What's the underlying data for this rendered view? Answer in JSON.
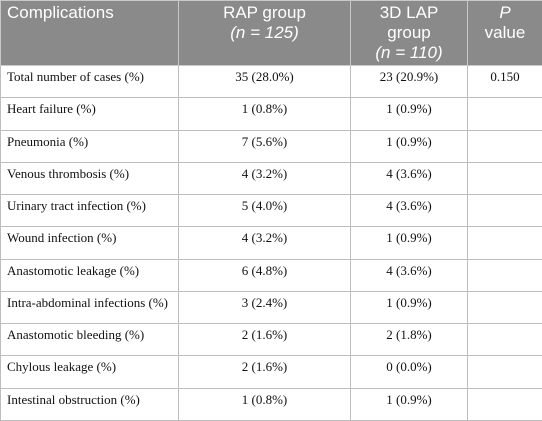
{
  "header": {
    "columns": [
      [
        "Complications"
      ],
      [
        "RAP group",
        "(",
        "n",
        " = 125)"
      ],
      [
        "3D LAP group",
        "(",
        "n",
        " = 110)"
      ],
      [
        "P",
        "value"
      ]
    ]
  },
  "table": {
    "rows": [
      [
        "Total number of cases (%)",
        "35 (28.0%)",
        "23 (20.9%)",
        "0.150"
      ],
      [
        "Heart failure (%)",
        "1 (0.8%)",
        "1 (0.9%)"
      ],
      [
        "Pneumonia (%)",
        "7 (5.6%)",
        "1 (0.9%)"
      ],
      [
        "Venous thrombosis (%)",
        "4 (3.2%)",
        "4 (3.6%)"
      ],
      [
        "Urinary tract infection (%)",
        "5 (4.0%)",
        "4 (3.6%)"
      ],
      [
        "Wound infection (%)",
        "4 (3.2%)",
        "1 (0.9%)"
      ],
      [
        "Anastomotic leakage (%)",
        "6 (4.8%)",
        "4 (3.6%)"
      ],
      [
        "Intra-abdominal infections (%)",
        "3 (2.4%)",
        "1 (0.9%)"
      ],
      [
        "Anastomotic bleeding (%)",
        "2 (1.6%)",
        "2 (1.8%)"
      ],
      [
        "Chylous leakage (%)",
        "2 (1.6%)",
        "0 (0.0%)"
      ],
      [
        "Intestinal obstruction (%)",
        "1 (0.8%)",
        "1 (0.9%)"
      ]
    ]
  }
}
